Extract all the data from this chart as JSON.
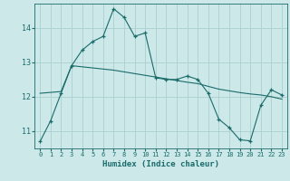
{
  "xlabel": "Humidex (Indice chaleur)",
  "ylabel": "",
  "bg_color": "#cce8e8",
  "grid_color": "#aad0d0",
  "line_color": "#1a6b6b",
  "xlim": [
    -0.5,
    23.5
  ],
  "ylim": [
    10.5,
    14.7
  ],
  "yticks": [
    11,
    12,
    13,
    14
  ],
  "xticks": [
    0,
    1,
    2,
    3,
    4,
    5,
    6,
    7,
    8,
    9,
    10,
    11,
    12,
    13,
    14,
    15,
    16,
    17,
    18,
    19,
    20,
    21,
    22,
    23
  ],
  "series1_x": [
    0,
    1,
    2,
    3,
    4,
    5,
    6,
    7,
    8,
    9,
    10,
    11,
    12,
    13,
    14,
    15,
    16,
    17,
    18,
    19,
    20,
    21,
    22,
    23
  ],
  "series1_y": [
    10.7,
    11.3,
    12.1,
    12.9,
    13.35,
    13.6,
    13.75,
    14.55,
    14.3,
    13.75,
    13.85,
    12.55,
    12.5,
    12.5,
    12.6,
    12.5,
    12.1,
    11.35,
    11.1,
    10.75,
    10.72,
    11.75,
    12.2,
    12.05
  ],
  "series2_x": [
    0,
    2,
    3,
    7,
    10,
    14,
    15,
    16,
    17,
    19,
    20,
    21,
    22,
    23
  ],
  "series2_y": [
    12.1,
    12.15,
    12.9,
    12.77,
    12.62,
    12.42,
    12.38,
    12.3,
    12.22,
    12.12,
    12.08,
    12.05,
    12.0,
    11.93
  ]
}
